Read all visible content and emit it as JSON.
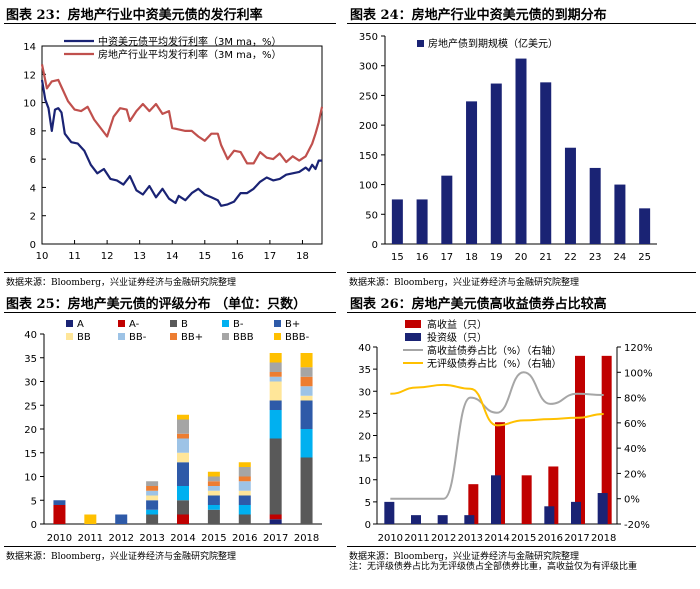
{
  "charts": {
    "c23": {
      "title": "图表 23：房地产行业中资美元债的发行利率",
      "source": "数据来源：Bloomberg，兴业证券经济与金融研究院整理"
    },
    "c24": {
      "title": "图表 24：房地产行业中资美元债的到期分布",
      "source": "数据来源：Bloomberg，兴业证券经济与金融研究院整理"
    },
    "c25": {
      "title": "图表 25：房地产美元债的评级分布 （单位：只数）",
      "source": "数据来源：Bloomberg，兴业证券经济与金融研究院整理"
    },
    "c26": {
      "title": "图表 26：房地产美元债高收益债券占比较高",
      "source": "数据来源：Bloomberg，兴业证券经济与金融研究院整理",
      "note": "注：无评级债券占比为无评级债占全部债券比重，高收益仅为有评级比重"
    }
  },
  "colors": {
    "navy": "#1a2374",
    "red": "#c0504d",
    "darkred": "#c00000",
    "gray": "#a6a6a6",
    "yellow": "#ffc000"
  },
  "chart_data": [
    {
      "id": "c23",
      "type": "line",
      "title": "房地产行业中资美元债的发行利率",
      "xlim": [
        10,
        18.6
      ],
      "ylim": [
        0,
        14
      ],
      "x_ticks": [
        "10",
        "11",
        "12",
        "13",
        "14",
        "15",
        "16",
        "17",
        "18"
      ],
      "y_ticks": [
        "0",
        "2",
        "4",
        "6",
        "8",
        "10",
        "12",
        "14"
      ],
      "series": [
        {
          "name": "中资美元债平均发行利率（3M ma，%）",
          "color": "#1a2374",
          "points": [
            [
              10.0,
              11.6
            ],
            [
              10.1,
              10.2
            ],
            [
              10.2,
              9.6
            ],
            [
              10.3,
              8.0
            ],
            [
              10.4,
              9.5
            ],
            [
              10.5,
              9.6
            ],
            [
              10.6,
              9.3
            ],
            [
              10.7,
              7.8
            ],
            [
              10.9,
              7.2
            ],
            [
              11.1,
              7.1
            ],
            [
              11.3,
              6.6
            ],
            [
              11.5,
              5.6
            ],
            [
              11.7,
              5.0
            ],
            [
              11.9,
              5.3
            ],
            [
              12.1,
              4.6
            ],
            [
              12.3,
              4.5
            ],
            [
              12.5,
              4.2
            ],
            [
              12.7,
              4.8
            ],
            [
              12.9,
              3.8
            ],
            [
              13.1,
              3.5
            ],
            [
              13.3,
              4.1
            ],
            [
              13.5,
              3.3
            ],
            [
              13.7,
              3.9
            ],
            [
              13.9,
              3.2
            ],
            [
              14.1,
              2.9
            ],
            [
              14.2,
              3.4
            ],
            [
              14.4,
              3.1
            ],
            [
              14.6,
              3.6
            ],
            [
              14.8,
              3.9
            ],
            [
              15.0,
              3.5
            ],
            [
              15.2,
              3.3
            ],
            [
              15.4,
              3.1
            ],
            [
              15.5,
              2.7
            ],
            [
              15.7,
              2.8
            ],
            [
              15.9,
              3.0
            ],
            [
              16.1,
              3.6
            ],
            [
              16.3,
              3.6
            ],
            [
              16.5,
              3.9
            ],
            [
              16.7,
              4.4
            ],
            [
              16.9,
              4.7
            ],
            [
              17.1,
              4.5
            ],
            [
              17.3,
              4.6
            ],
            [
              17.5,
              4.9
            ],
            [
              17.7,
              5.0
            ],
            [
              17.9,
              5.1
            ],
            [
              18.1,
              5.4
            ],
            [
              18.2,
              5.2
            ],
            [
              18.3,
              5.6
            ],
            [
              18.4,
              5.3
            ],
            [
              18.5,
              5.9
            ],
            [
              18.6,
              5.9
            ]
          ]
        },
        {
          "name": "房地产行业平均发行利率（3M ma，%）",
          "color": "#c0504d",
          "points": [
            [
              10.0,
              12.7
            ],
            [
              10.15,
              11.0
            ],
            [
              10.3,
              11.5
            ],
            [
              10.5,
              11.6
            ],
            [
              10.6,
              11.1
            ],
            [
              10.8,
              10.1
            ],
            [
              11.0,
              9.5
            ],
            [
              11.2,
              9.4
            ],
            [
              11.4,
              9.7
            ],
            [
              11.6,
              8.8
            ],
            [
              11.8,
              8.2
            ],
            [
              12.0,
              7.6
            ],
            [
              12.2,
              9.0
            ],
            [
              12.4,
              9.6
            ],
            [
              12.6,
              9.5
            ],
            [
              12.7,
              8.7
            ],
            [
              12.9,
              9.4
            ],
            [
              13.1,
              9.9
            ],
            [
              13.3,
              9.4
            ],
            [
              13.5,
              9.9
            ],
            [
              13.7,
              9.2
            ],
            [
              13.9,
              9.4
            ],
            [
              14.0,
              8.2
            ],
            [
              14.2,
              8.1
            ],
            [
              14.4,
              8.0
            ],
            [
              14.6,
              8.0
            ],
            [
              14.8,
              7.6
            ],
            [
              15.0,
              7.3
            ],
            [
              15.2,
              7.8
            ],
            [
              15.4,
              7.8
            ],
            [
              15.5,
              7.0
            ],
            [
              15.7,
              6.0
            ],
            [
              15.9,
              6.6
            ],
            [
              16.1,
              6.5
            ],
            [
              16.3,
              5.7
            ],
            [
              16.5,
              5.7
            ],
            [
              16.7,
              6.5
            ],
            [
              16.9,
              6.1
            ],
            [
              17.1,
              6.0
            ],
            [
              17.3,
              6.4
            ],
            [
              17.5,
              5.8
            ],
            [
              17.7,
              6.2
            ],
            [
              17.9,
              5.9
            ],
            [
              18.1,
              6.2
            ],
            [
              18.3,
              7.1
            ],
            [
              18.4,
              7.8
            ],
            [
              18.5,
              8.6
            ],
            [
              18.6,
              9.7
            ]
          ]
        }
      ]
    },
    {
      "id": "c24",
      "type": "bar",
      "title": "房地产行业中资美元债的到期分布",
      "categories": [
        "15",
        "16",
        "17",
        "18",
        "19",
        "20",
        "21",
        "22",
        "23",
        "24",
        "25"
      ],
      "x_ticks": [
        "15",
        "16",
        "17",
        "18",
        "19",
        "20",
        "21",
        "22",
        "23",
        "24",
        "25"
      ],
      "ylim": [
        0,
        350
      ],
      "y_ticks": [
        "0",
        "50",
        "100",
        "150",
        "200",
        "250",
        "300",
        "350"
      ],
      "series": [
        {
          "name": "房地产债到期规模（亿美元）",
          "color": "#1a2374",
          "values": [
            75,
            75,
            115,
            240,
            270,
            312,
            272,
            162,
            128,
            100,
            60
          ]
        }
      ]
    },
    {
      "id": "c25",
      "type": "bar",
      "stacked": true,
      "title": "房地产美元债的评级分布",
      "categories": [
        "2010",
        "2011",
        "2012",
        "2013",
        "2014",
        "2015",
        "2016",
        "2017",
        "2018"
      ],
      "ylim": [
        0,
        40
      ],
      "y_ticks": [
        "0",
        "5",
        "10",
        "15",
        "20",
        "25",
        "30",
        "35",
        "40"
      ],
      "series": [
        {
          "name": "A",
          "color": "#1a2374",
          "values": [
            0,
            0,
            0,
            0,
            0,
            0,
            0,
            1,
            0
          ]
        },
        {
          "name": "A-",
          "color": "#c00000",
          "values": [
            4,
            0,
            0,
            0,
            2,
            0,
            0,
            1,
            0
          ]
        },
        {
          "name": "B",
          "color": "#595959",
          "values": [
            0,
            0,
            0,
            2,
            3,
            3,
            2,
            16,
            14
          ]
        },
        {
          "name": "B-",
          "color": "#00b0f0",
          "values": [
            0,
            0,
            0,
            1,
            3,
            1,
            2,
            6,
            6
          ]
        },
        {
          "name": "B+",
          "color": "#2e5aa8",
          "values": [
            1,
            0,
            2,
            2,
            5,
            2,
            2,
            2,
            6
          ]
        },
        {
          "name": "BB",
          "color": "#ffe699",
          "values": [
            0,
            0,
            0,
            1,
            2,
            1,
            1,
            4,
            1
          ]
        },
        {
          "name": "BB-",
          "color": "#9dc3e6",
          "values": [
            0,
            0,
            0,
            1,
            3,
            1,
            2,
            1,
            2
          ]
        },
        {
          "name": "BB+",
          "color": "#ed7d31",
          "values": [
            0,
            0,
            0,
            1,
            1,
            1,
            1,
            1,
            2
          ]
        },
        {
          "name": "BBB",
          "color": "#a5a5a5",
          "values": [
            0,
            0,
            0,
            1,
            3,
            1,
            2,
            2,
            2
          ]
        },
        {
          "name": "BBB-",
          "color": "#ffc000",
          "values": [
            0,
            2,
            0,
            0,
            1,
            1,
            1,
            2,
            3
          ]
        }
      ],
      "legend": [
        "A",
        "A-",
        "B",
        "B-",
        "B+",
        "BB",
        "BB-",
        "BB+",
        "BBB",
        "BBB-"
      ]
    },
    {
      "id": "c26",
      "type": "bar",
      "title": "房地产美元债高收益债券占比较高",
      "categories": [
        "2010",
        "2011",
        "2012",
        "2013",
        "2014",
        "2015",
        "2016",
        "2017",
        "2018"
      ],
      "ylim": [
        0,
        40
      ],
      "y_ticks": [
        "0",
        "5",
        "10",
        "15",
        "20",
        "25",
        "30",
        "35",
        "40"
      ],
      "y2lim": [
        -20,
        120
      ],
      "y2_ticks": [
        "-20%",
        "0%",
        "20%",
        "40%",
        "60%",
        "80%",
        "100%",
        "120%"
      ],
      "series": [
        {
          "name": "高收益（只）",
          "type": "bar",
          "color": "#c00000",
          "values": [
            0,
            0,
            0,
            9,
            23,
            11,
            13,
            38,
            38
          ]
        },
        {
          "name": "投资级（只）",
          "type": "bar",
          "color": "#1a2374",
          "values": [
            5,
            2,
            2,
            2,
            11,
            0,
            4,
            5,
            7
          ]
        },
        {
          "name": "高收益债券占比（%）（右轴）",
          "type": "line",
          "axis": "right",
          "color": "#a6a6a6",
          "values": [
            0,
            0,
            0,
            80,
            68,
            100,
            75,
            83,
            82
          ]
        },
        {
          "name": "无评级债券占比（%）（右轴）",
          "type": "line",
          "axis": "right",
          "color": "#ffc000",
          "values": [
            83,
            88,
            90,
            87,
            58,
            62,
            63,
            64,
            67
          ]
        }
      ]
    }
  ]
}
